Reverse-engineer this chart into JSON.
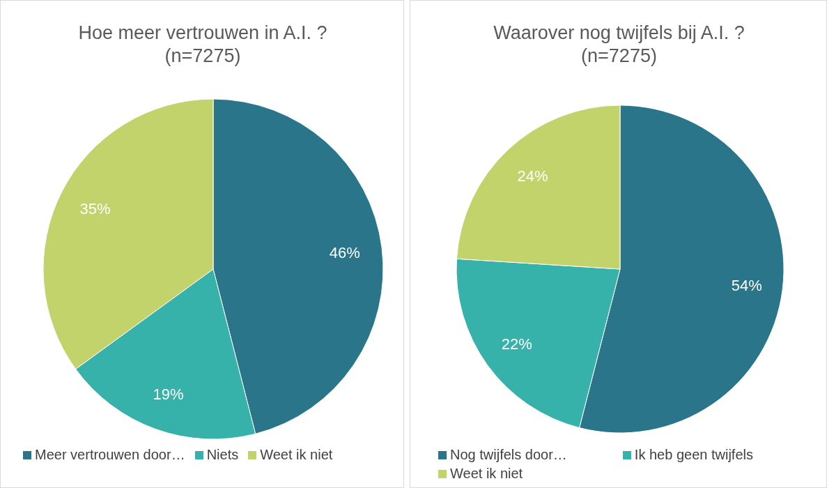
{
  "chart_data": [
    {
      "type": "pie",
      "title": "Hoe meer vertrouwen in A.I. ?\n(n=7275)",
      "categories": [
        "Meer vertrouwen door…",
        "Niets",
        "Weet ik niet"
      ],
      "values": [
        46,
        19,
        35
      ],
      "value_labels": [
        "46%",
        "19%",
        "35%"
      ],
      "colors": [
        "#2a7589",
        "#37b2aa",
        "#c2d36b"
      ],
      "legend": "bottom"
    },
    {
      "type": "pie",
      "title": "Waarover nog twijfels bij A.I. ?\n(n=7275)",
      "categories": [
        "Nog twijfels door…",
        "Ik heb geen twijfels",
        "Weet ik niet"
      ],
      "values": [
        54,
        22,
        24
      ],
      "value_labels": [
        "54%",
        "22%",
        "24%"
      ],
      "colors": [
        "#2a7589",
        "#37b2aa",
        "#c2d36b"
      ],
      "legend": "bottom"
    }
  ]
}
